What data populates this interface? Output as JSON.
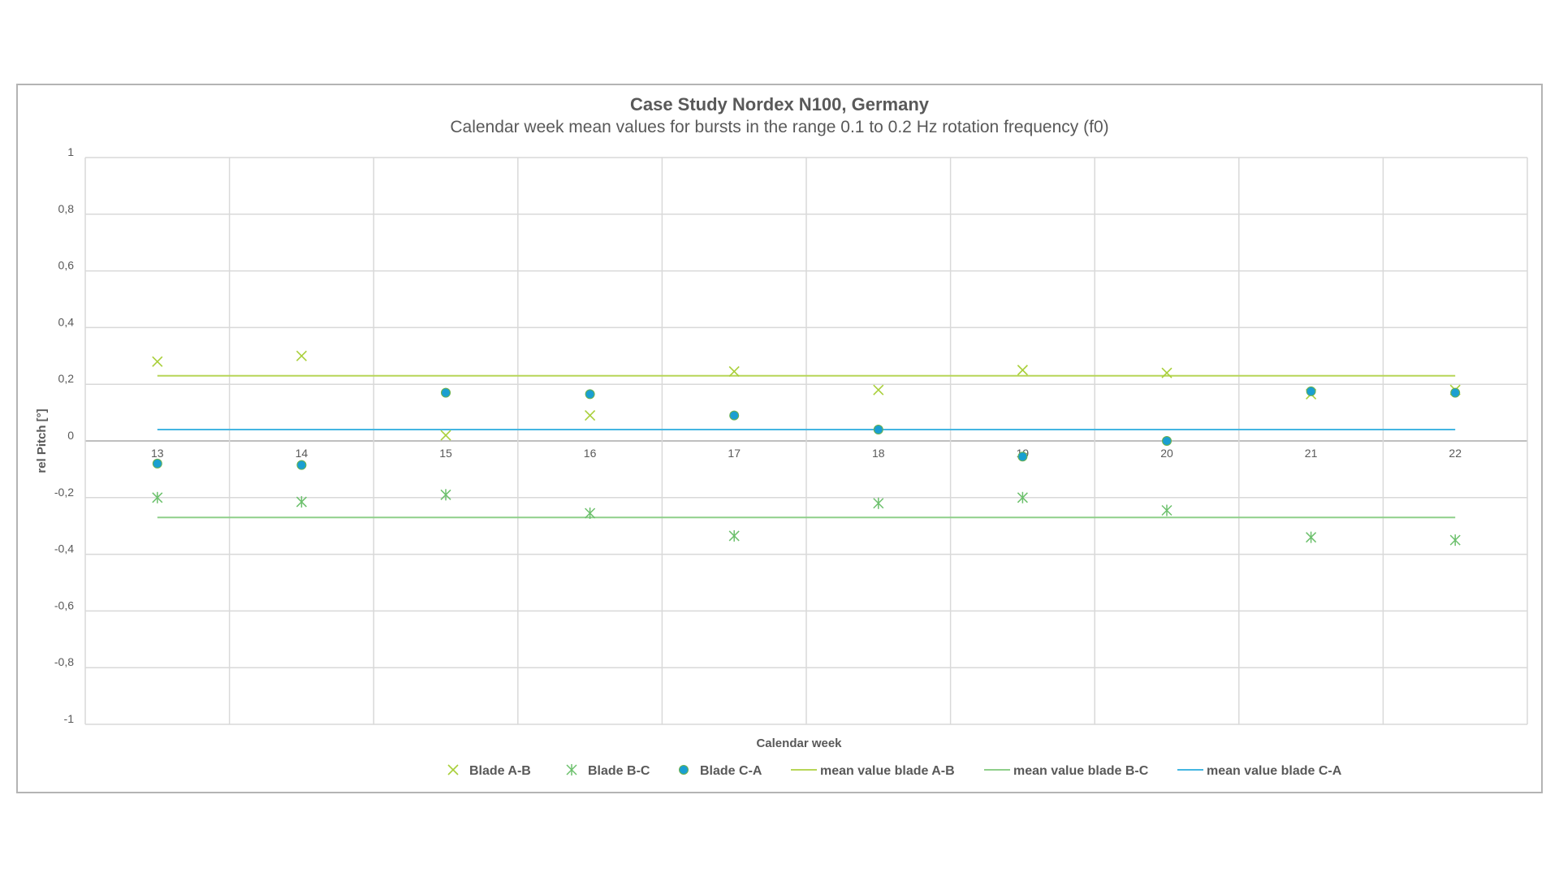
{
  "chart_data": {
    "type": "scatter",
    "title": "Case Study Nordex N100, Germany",
    "subtitle": "Calendar week mean values for bursts in the range 0.1 to 0.2 Hz rotation frequency (f0)",
    "xlabel": "Calendar week",
    "ylabel": "rel Pitch [°]",
    "x": [
      13,
      14,
      15,
      16,
      17,
      18,
      19,
      20,
      21,
      22
    ],
    "ylim": [
      -1,
      1
    ],
    "yticks": [
      "1",
      "0,8",
      "0,6",
      "0,4",
      "0,2",
      "0",
      "-0,2",
      "-0,4",
      "-0,6",
      "-0,8",
      "-1"
    ],
    "grid": true,
    "legend_position": "bottom",
    "series": [
      {
        "name": "Blade A-B",
        "marker": "x",
        "color": "#a9cf3a",
        "values": [
          0.28,
          0.3,
          0.02,
          0.09,
          0.245,
          0.18,
          0.25,
          0.24,
          0.165,
          0.18
        ]
      },
      {
        "name": "Blade B-C",
        "marker": "asterisk",
        "color": "#6cc06c",
        "values": [
          -0.2,
          -0.215,
          -0.19,
          -0.255,
          -0.335,
          -0.22,
          -0.2,
          -0.245,
          -0.34,
          -0.35
        ]
      },
      {
        "name": "Blade C-A",
        "marker": "circle",
        "color": "#1a9fd1",
        "values": [
          -0.08,
          -0.085,
          0.17,
          0.165,
          0.09,
          0.04,
          -0.055,
          0.0,
          0.175,
          0.17
        ]
      },
      {
        "name": "mean value blade A-B",
        "marker": "line",
        "color": "#b7d657",
        "values": [
          0.23,
          0.23,
          0.23,
          0.23,
          0.23,
          0.23,
          0.23,
          0.23,
          0.23,
          0.23
        ]
      },
      {
        "name": "mean value blade B-C",
        "marker": "line",
        "color": "#8fcf8a",
        "values": [
          -0.27,
          -0.27,
          -0.27,
          -0.27,
          -0.27,
          -0.27,
          -0.27,
          -0.27,
          -0.27,
          -0.27
        ]
      },
      {
        "name": "mean value blade C-A",
        "marker": "line",
        "color": "#44b6e2",
        "values": [
          0.04,
          0.04,
          0.04,
          0.04,
          0.04,
          0.04,
          0.04,
          0.04,
          0.04,
          0.04
        ]
      }
    ]
  },
  "legend": {
    "items": [
      {
        "label": "Blade A-B"
      },
      {
        "label": "Blade B-C"
      },
      {
        "label": "Blade C-A"
      },
      {
        "label": "mean value blade A-B"
      },
      {
        "label": "mean value blade B-C"
      },
      {
        "label": "mean value blade C-A"
      }
    ]
  }
}
